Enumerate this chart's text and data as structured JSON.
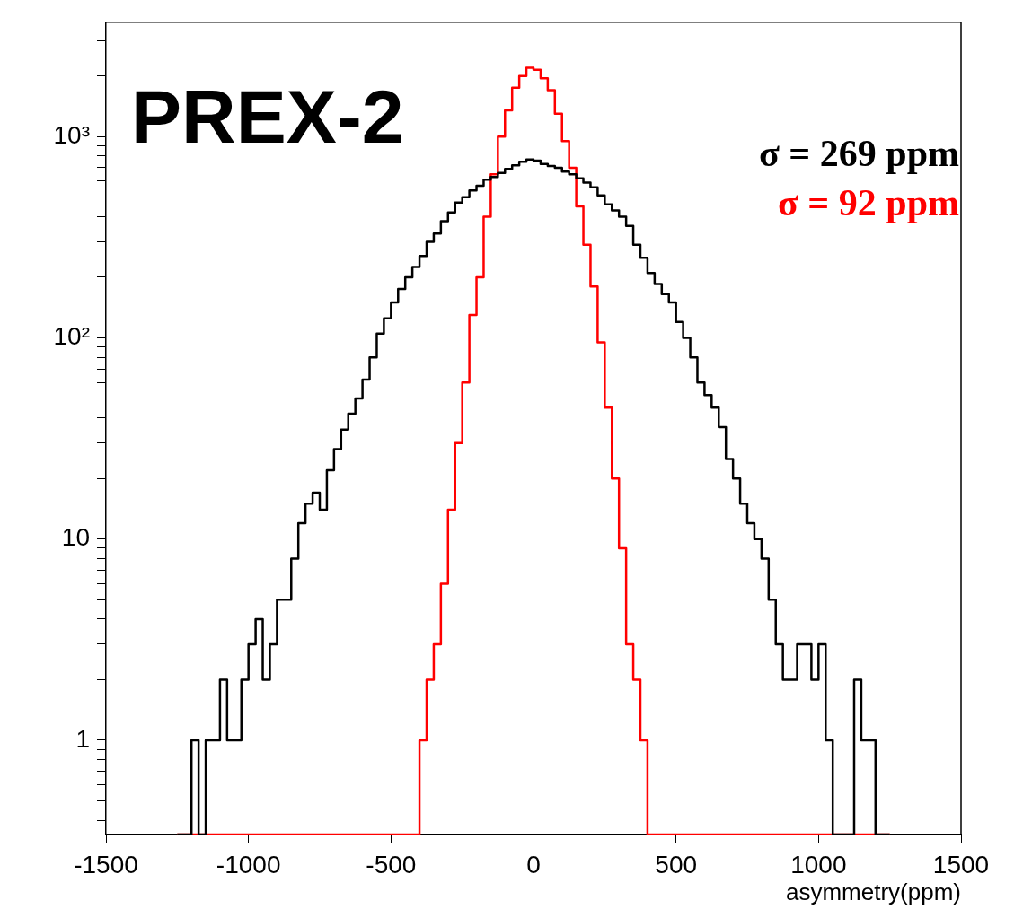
{
  "chart_data": {
    "type": "histogram",
    "title": "PREX-2",
    "xlabel": "asymmetry(ppm)",
    "bins": [
      -1250,
      -1225,
      -1200,
      -1175,
      -1150,
      -1125,
      -1100,
      -1075,
      -1050,
      -1025,
      -1000,
      -975,
      -950,
      -925,
      -900,
      -875,
      -850,
      -825,
      -800,
      -775,
      -750,
      -725,
      -700,
      -675,
      -650,
      -625,
      -600,
      -575,
      -550,
      -525,
      -500,
      -475,
      -450,
      -425,
      -400,
      -375,
      -350,
      -325,
      -300,
      -275,
      -250,
      -225,
      -200,
      -175,
      -150,
      -125,
      -100,
      -75,
      -50,
      -25,
      0,
      25,
      50,
      75,
      100,
      125,
      150,
      175,
      200,
      225,
      250,
      275,
      300,
      325,
      350,
      375,
      400,
      425,
      450,
      475,
      500,
      525,
      550,
      575,
      600,
      625,
      650,
      675,
      700,
      725,
      750,
      775,
      800,
      825,
      850,
      875,
      900,
      925,
      950,
      975,
      1000,
      1025,
      1050,
      1075,
      1100,
      1125,
      1150,
      1175,
      1200,
      1225,
      1250
    ],
    "series": [
      {
        "name": "σ = 269 ppm",
        "color": "#000000",
        "values": [
          null,
          null,
          1,
          null,
          1,
          1,
          2,
          1,
          1,
          2,
          3,
          4,
          2,
          3,
          5,
          5,
          8,
          12,
          15,
          17,
          14,
          22,
          28,
          35,
          42,
          50,
          62,
          80,
          105,
          125,
          150,
          175,
          200,
          225,
          255,
          300,
          330,
          380,
          420,
          470,
          500,
          540,
          570,
          610,
          630,
          660,
          690,
          720,
          750,
          770,
          760,
          730,
          715,
          700,
          670,
          650,
          620,
          590,
          560,
          510,
          460,
          430,
          400,
          360,
          290,
          250,
          210,
          185,
          165,
          150,
          120,
          100,
          80,
          60,
          52,
          45,
          36,
          25,
          20,
          15,
          12,
          10,
          8,
          5,
          3,
          2,
          2,
          3,
          3,
          2,
          3,
          1,
          null,
          null,
          null,
          2,
          1,
          1,
          null,
          null
        ]
      },
      {
        "name": "σ = 92 ppm",
        "color": "#ff0000",
        "values": [
          null,
          null,
          null,
          null,
          null,
          null,
          null,
          null,
          null,
          null,
          null,
          null,
          null,
          null,
          null,
          null,
          null,
          null,
          null,
          null,
          null,
          null,
          null,
          null,
          null,
          null,
          null,
          null,
          null,
          null,
          null,
          null,
          null,
          null,
          1,
          2,
          3,
          6,
          14,
          30,
          60,
          130,
          200,
          400,
          650,
          1000,
          1350,
          1750,
          2000,
          2200,
          2150,
          1950,
          1700,
          1300,
          950,
          700,
          450,
          290,
          180,
          95,
          45,
          20,
          9,
          3,
          2,
          1,
          null,
          null,
          null,
          null,
          null,
          null,
          null,
          null,
          null,
          null,
          null,
          null,
          null,
          null,
          null,
          null,
          null,
          null,
          null,
          null,
          null,
          null,
          null,
          null,
          null,
          null,
          null,
          null,
          null,
          null,
          null,
          null,
          null,
          null
        ]
      }
    ],
    "xlim": [
      -1500,
      1500
    ],
    "xticks": [
      -1500,
      -1000,
      -500,
      0,
      500,
      1000,
      1500
    ],
    "ylim": [
      0.34,
      3700
    ],
    "yticks": [
      {
        "value": 0.4,
        "label": null
      },
      {
        "value": 0.5,
        "label": null
      },
      {
        "value": 0.6,
        "label": null
      },
      {
        "value": 0.7,
        "label": null
      },
      {
        "value": 0.8,
        "label": null
      },
      {
        "value": 0.9,
        "label": null
      },
      1,
      {
        "value": 2,
        "label": null
      },
      {
        "value": 3,
        "label": null
      },
      {
        "value": 4,
        "label": null
      },
      {
        "value": 5,
        "label": null
      },
      {
        "value": 6,
        "label": null
      },
      {
        "value": 7,
        "label": null
      },
      {
        "value": 8,
        "label": null
      },
      {
        "value": 9,
        "label": null
      },
      10,
      {
        "value": 20,
        "label": null
      },
      {
        "value": 30,
        "label": null
      },
      {
        "value": 40,
        "label": null
      },
      {
        "value": 50,
        "label": null
      },
      {
        "value": 60,
        "label": null
      },
      {
        "value": 70,
        "label": null
      },
      {
        "value": 80,
        "label": null
      },
      {
        "value": 90,
        "label": null
      },
      {
        "value": 100,
        "label": "10²"
      },
      {
        "value": 200,
        "label": null
      },
      {
        "value": 300,
        "label": null
      },
      {
        "value": 400,
        "label": null
      },
      {
        "value": 500,
        "label": null
      },
      {
        "value": 600,
        "label": null
      },
      {
        "value": 700,
        "label": null
      },
      {
        "value": 800,
        "label": null
      },
      {
        "value": 900,
        "label": null
      },
      {
        "value": 1000,
        "label": "10³"
      },
      {
        "value": 2000,
        "label": null
      },
      {
        "value": 3000,
        "label": null
      }
    ],
    "log": "y",
    "grid": false,
    "legend": "top right"
  }
}
